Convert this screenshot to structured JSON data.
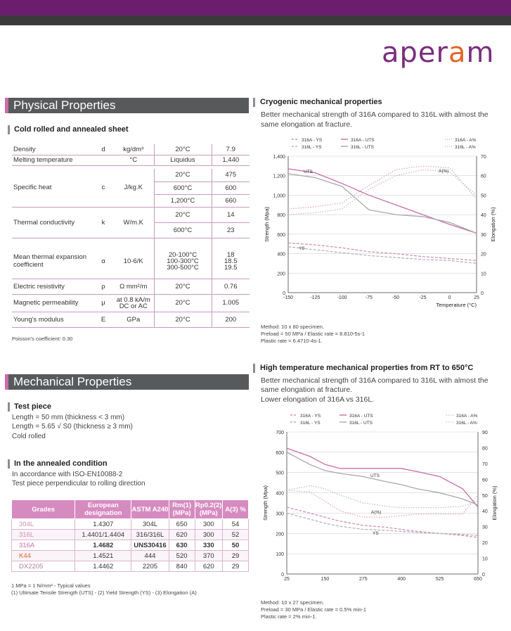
{
  "brand": {
    "logo_a": "aper",
    "logo_o": "a",
    "logo_b": "m"
  },
  "physical": {
    "title": "Physical Properties",
    "subtitle": "Cold rolled and annealed sheet",
    "rows": [
      {
        "name": "Density",
        "symbol": "d",
        "unit": "kg/dm³",
        "cond": "20°C",
        "value": "7.9"
      },
      {
        "name": "Melting temperature",
        "symbol": "",
        "unit": "°C",
        "cond": "Liquidus",
        "value": "1,440"
      },
      {
        "name": "Specific heat",
        "symbol": "c",
        "unit": "J/kg.K",
        "conds": [
          "20°C",
          "600°C",
          "1,200°C"
        ],
        "values": [
          "475",
          "600",
          "660"
        ]
      },
      {
        "name": "Thermal conductivity",
        "symbol": "k",
        "unit": "W/m.K",
        "conds": [
          "20°C",
          "600°C"
        ],
        "values": [
          "14",
          "23"
        ]
      },
      {
        "name": "Mean thermal expansion coefficient",
        "symbol": "α",
        "unit": "10-6/K",
        "cond_lines": [
          "20-100°C",
          "100-300°C",
          "300-500°C"
        ],
        "value_lines": [
          "18",
          "18.5",
          "19.5"
        ]
      },
      {
        "name": "Electric resistivity",
        "symbol": "ρ",
        "unit": "Ω mm²/m",
        "cond": "20°C",
        "value": "0.76"
      },
      {
        "name": "Magnetic permeability",
        "symbol": "μ",
        "unit_lines": [
          "at 0.8 kA/m",
          "DC or AC"
        ],
        "cond": "20°C",
        "value": "1.005"
      },
      {
        "name": "Young's modulus",
        "symbol": "E",
        "unit": "GPa",
        "cond": "20°C",
        "value": "200"
      }
    ],
    "note": "Poisson's coefficient: 0.30"
  },
  "mechanical": {
    "title": "Mechanical Properties",
    "test_piece_title": "Test piece",
    "test_piece_lines": [
      "Length = 50 mm (thickness < 3 mm)",
      "Length = 5.65 √ S0 (thickness ≥ 3 mm)",
      "Cold rolled"
    ],
    "annealed_title": "In the annealed condition",
    "annealed_lines": [
      "In accordance with ISO-EN10088-2",
      "Test piece perpendicular to rolling direction"
    ],
    "headers": [
      "Grades",
      "European designation",
      "ASTM A240",
      "Rm(1) (MPa)",
      "Rp0.2(2) (MPa)",
      "A(3) %"
    ],
    "grades": [
      {
        "grade": "304L",
        "eu": "1.4307",
        "astm": "304L",
        "rm": "650",
        "rp": "300",
        "a": "54",
        "color": "#c98fb5",
        "bold": false
      },
      {
        "grade": "316L",
        "eu": "1.4401/1.4404",
        "astm": "316/316L",
        "rm": "620",
        "rp": "300",
        "a": "52",
        "color": "#c98fb5",
        "bold": false
      },
      {
        "grade": "316A",
        "eu": "1.4682",
        "astm": "UNS30416",
        "rm": "630",
        "rp": "330",
        "a": "50",
        "color": "#c96ca9",
        "bold": true
      },
      {
        "grade": "K44",
        "eu": "1.4521",
        "astm": "444",
        "rm": "520",
        "rp": "370",
        "a": "29",
        "color": "#e0672a",
        "bold": false
      },
      {
        "grade": "DX2205",
        "eu": "1.4462",
        "astm": "2205",
        "rm": "840",
        "rp": "620",
        "a": "29",
        "color": "#b07aa3",
        "bold": false
      }
    ],
    "footnote1": "1 MPa = 1 N/mm² - Typical values",
    "footnote2": "(1) Ultimate Tensile Strength (UTS) - (2) Yield Strength (YS) - (3) Elongation (A)"
  },
  "chart_data": [
    {
      "type": "line",
      "title": "Cryogenic mechanical properties",
      "subtitle_lines": [
        "Better mechanical strength of 316A compared to 316L with almost the",
        "same elongation at fracture."
      ],
      "xlabel": "Temperature (°C)",
      "ylabel": "Strength (Mpa)",
      "y2label": "Elongation (%)",
      "xlim": [
        -150,
        25
      ],
      "ylim": [
        0,
        1400
      ],
      "y2lim": [
        0,
        70
      ],
      "xticks": [
        "-150",
        "-125",
        "-100",
        "-75",
        "-50",
        "-25",
        "0",
        "25"
      ],
      "yticks": [
        "0",
        "200",
        "400",
        "600",
        "800",
        "1,000",
        "1,200",
        "1,400"
      ],
      "y2ticks": [
        "0",
        "10",
        "20",
        "30",
        "40",
        "50",
        "60",
        "70"
      ],
      "legend": [
        "316A - YS",
        "316L - YS",
        "316A - UTS",
        "316L - UTS",
        "316A - A%",
        "316L - A%"
      ],
      "annotations": [
        "UTS",
        "YS",
        "A(%)"
      ],
      "x": [
        -150,
        -125,
        -100,
        -75,
        -50,
        -25,
        0,
        25
      ],
      "series": [
        {
          "name": "316A - UTS",
          "axis": "y",
          "values": [
            1270,
            1230,
            1120,
            1000,
            900,
            800,
            700,
            610
          ]
        },
        {
          "name": "316L - UTS",
          "axis": "y",
          "values": [
            1220,
            1180,
            1090,
            850,
            800,
            780,
            720,
            610
          ]
        },
        {
          "name": "316A - YS",
          "axis": "y",
          "values": [
            510,
            490,
            460,
            420,
            400,
            370,
            350,
            330
          ]
        },
        {
          "name": "316L - YS",
          "axis": "y",
          "values": [
            470,
            440,
            410,
            380,
            360,
            340,
            330,
            300
          ]
        },
        {
          "name": "316A - A%",
          "axis": "y2",
          "values": [
            43,
            44,
            46,
            55,
            63,
            65,
            64,
            48
          ]
        },
        {
          "name": "316L - A%",
          "axis": "y2",
          "values": [
            40,
            41,
            43,
            53,
            60,
            63,
            62,
            50
          ]
        }
      ],
      "notes": [
        "Method: 10 x 80 specimen.",
        "Preload = 50 MPa / Elastic rate = 8.810-5s-1",
        "Plastic rate = 6.4710-4s-1."
      ]
    },
    {
      "type": "line",
      "title": "High temperature mechanical properties from RT to 650°C",
      "subtitle_lines": [
        "Better mechanical strength of 316A compared to 316L with almost the",
        "same elongation at fracture.",
        "Lower elongation of 316A vs 316L."
      ],
      "xlabel": "",
      "ylabel": "Strength (Mpa)",
      "y2label": "Elongation (%)",
      "xlim": [
        25,
        650
      ],
      "ylim": [
        0,
        700
      ],
      "y2lim": [
        0,
        90
      ],
      "xticks": [
        "25",
        "150",
        "275",
        "400",
        "525",
        "650"
      ],
      "yticks": [
        "0",
        "100",
        "200",
        "300",
        "400",
        "500",
        "600",
        "700"
      ],
      "y2ticks": [
        "0",
        "10",
        "20",
        "30",
        "40",
        "50",
        "60",
        "70",
        "80",
        "90"
      ],
      "legend": [
        "316A - YS",
        "316L - YS",
        "316A - UTS",
        "316L - UTS",
        "316A - A%",
        "316L - A%"
      ],
      "annotations": [
        "UTS",
        "A(%)",
        "YS"
      ],
      "x": [
        25,
        100,
        150,
        200,
        275,
        350,
        400,
        450,
        525,
        600,
        650
      ],
      "series": [
        {
          "name": "316A - UTS",
          "axis": "y",
          "values": [
            620,
            580,
            540,
            520,
            520,
            520,
            520,
            505,
            480,
            420,
            330
          ]
        },
        {
          "name": "316L - UTS",
          "axis": "y",
          "values": [
            600,
            540,
            510,
            495,
            480,
            455,
            440,
            420,
            400,
            370,
            340
          ]
        },
        {
          "name": "316A - YS",
          "axis": "y",
          "values": [
            330,
            300,
            280,
            260,
            240,
            230,
            220,
            210,
            200,
            190,
            180
          ]
        },
        {
          "name": "316L - YS",
          "axis": "y",
          "values": [
            300,
            270,
            250,
            235,
            220,
            215,
            210,
            205,
            200,
            195,
            190
          ]
        },
        {
          "name": "316A - A%",
          "axis": "y2",
          "values": [
            53,
            52,
            46,
            40,
            36,
            36,
            37,
            38,
            38,
            38,
            50
          ]
        },
        {
          "name": "316L - A%",
          "axis": "y2",
          "values": [
            53,
            56,
            54,
            50,
            45,
            43,
            42,
            42,
            42,
            43,
            46
          ]
        }
      ],
      "notes": [
        "Method: 10 x 27 specimen.",
        "Preload = 30 MPa / Elastic rate = 0.5% min-1",
        "Plastic rate = 2% min-1."
      ]
    }
  ],
  "colors": {
    "316A - UTS": "#c96ca9",
    "316L - UTS": "#a8a8a8",
    "316A - YS": "#d48fb6",
    "316L - YS": "#b5b5b5",
    "316A - A%": "#e0a6c8",
    "316L - A%": "#bdbdbd"
  }
}
